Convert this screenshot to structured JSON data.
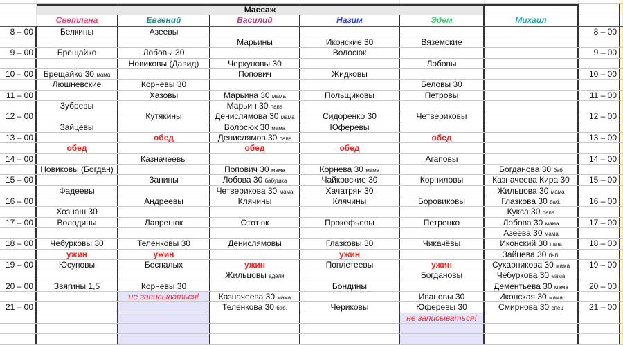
{
  "title": "Массаж",
  "colors": {
    "lunch": "#ff1a1a",
    "closed_fill": "#e3e3fa",
    "master_colors": [
      "#ff4070",
      "#1f8c8c",
      "#b03a7a",
      "#2a3cff",
      "#3dd36a",
      "#2fa5a5"
    ]
  },
  "masters": [
    "Светлана",
    "Евгений",
    "Василий",
    "Назим",
    "Эдем",
    "Михаил"
  ],
  "times": [
    "8 – 00",
    "9 – 00",
    "10 – 00",
    "11 – 00",
    "12 – 00",
    "13 – 00",
    "14 – 00",
    "15 – 00",
    "16 – 00",
    "17 – 00",
    "18 – 00",
    "19 – 00",
    "20 – 00",
    "21 – 00"
  ],
  "rows": [
    [
      [
        "Белкины"
      ],
      [
        "Азеевы"
      ],
      [],
      [],
      [],
      []
    ],
    [
      [],
      [],
      [
        "Марьины"
      ],
      [
        "Иконские 30"
      ],
      [
        "Вяземские"
      ],
      []
    ],
    [
      [
        "Брещайко"
      ],
      [
        "Лобовы 30"
      ],
      [],
      [
        "Волосюк"
      ],
      [],
      []
    ],
    [
      [],
      [
        "Новиковы (Давид)"
      ],
      [
        "Черкуновы 30"
      ],
      [],
      [
        "Лобовы"
      ],
      []
    ],
    [
      [
        "Брещайко 30",
        "мама"
      ],
      [],
      [
        "Попович"
      ],
      [
        "Жидковы"
      ],
      [],
      []
    ],
    [
      [
        "Люшневские"
      ],
      [
        "Корневы 30"
      ],
      [],
      [],
      [
        "Беловы 30"
      ],
      []
    ],
    [
      [],
      [
        "Хазовы"
      ],
      [
        "Марьина 30",
        "мама"
      ],
      [
        "Польщиковы"
      ],
      [
        "Петровы"
      ],
      []
    ],
    [
      [
        "Зубревы"
      ],
      [],
      [
        "Марьин 30",
        "папа"
      ],
      [],
      [],
      []
    ],
    [
      [],
      [
        "Кутякины"
      ],
      [
        "Денислямова 30",
        "мама"
      ],
      [
        "Сидоренко 30"
      ],
      [
        "Четвериковы"
      ],
      []
    ],
    [
      [
        "Зайцевы"
      ],
      [],
      [
        "Волосюк 30",
        "мама"
      ],
      [
        "Юферевы"
      ],
      [],
      []
    ],
    [
      [],
      [
        "обед"
      ],
      [
        "Денислямов 30",
        "папа"
      ],
      [],
      [
        "обед"
      ],
      []
    ],
    [
      [
        "обед"
      ],
      [],
      [
        "обед"
      ],
      [
        "обед"
      ],
      [],
      []
    ],
    [
      [],
      [
        "Казначеевы"
      ],
      [],
      [],
      [
        "Агаповы"
      ],
      []
    ],
    [
      [
        "Новиковы (Богдан)"
      ],
      [],
      [
        "Попович 30",
        "мама"
      ],
      [
        "Корнева 30",
        "мама"
      ],
      [],
      [
        "Богданова 30",
        "баб"
      ]
    ],
    [
      [],
      [
        "Занины"
      ],
      [
        "Лобова 30",
        "бабушка"
      ],
      [
        "Чайковские 30"
      ],
      [
        "Корниловы"
      ],
      [
        "Казначеева Кира 30"
      ]
    ],
    [
      [
        "Фадеевы"
      ],
      [],
      [
        "Четверикова 30",
        "мама"
      ],
      [
        "Хачатрян 30"
      ],
      [],
      [
        "Жильцова 30",
        "мама"
      ]
    ],
    [
      [],
      [
        "Андреевы"
      ],
      [
        "Клячины"
      ],
      [
        "Клячины"
      ],
      [
        "Боровиковы"
      ],
      [
        "Глазкова 30",
        "баб."
      ]
    ],
    [
      [
        "Хознаш 30"
      ],
      [],
      [],
      [],
      [],
      [
        "Кукса 30",
        "папа"
      ]
    ],
    [
      [
        "Володины"
      ],
      [
        "Лавренюк"
      ],
      [
        "Ототюк"
      ],
      [
        "Прокофьевы"
      ],
      [
        "Петренко"
      ],
      [
        "Лобова 30",
        "мама"
      ]
    ],
    [
      [],
      [],
      [],
      [],
      [],
      [
        "Азеева 30",
        "мама"
      ]
    ],
    [
      [
        "Чебурковы 30"
      ],
      [
        "Теленковы 30"
      ],
      [
        "Денислямовы"
      ],
      [
        "Глазковы 30"
      ],
      [
        "Чикачёвы"
      ],
      [
        "Иконский 30",
        "папа"
      ]
    ],
    [
      [
        "ужин"
      ],
      [
        "ужин"
      ],
      [],
      [
        "ужин"
      ],
      [],
      [
        "Зайцева 30",
        "баб."
      ]
    ],
    [
      [
        "Юсуповы"
      ],
      [
        "Беспалых"
      ],
      [
        "ужин"
      ],
      [
        "Поплетеевы"
      ],
      [
        "ужин"
      ],
      [
        "Сухарникова 30",
        "мама"
      ]
    ],
    [
      [],
      [],
      [
        "Жильцовы",
        "адели"
      ],
      [],
      [
        "Богдановы"
      ],
      [
        "Чебуркова 30",
        "мама"
      ]
    ],
    [
      [
        "Звягины 1,5"
      ],
      [
        "Корневы 30"
      ],
      [],
      [
        "Бондины"
      ],
      [],
      [
        "Дементьева 30",
        "мама"
      ]
    ],
    [
      [],
      [
        "не записываться!"
      ],
      [
        "Казначеева 30",
        "мама"
      ],
      [],
      [
        "Ивановы 30"
      ],
      [
        "Иконская 30",
        "мама"
      ]
    ],
    [
      [],
      [],
      [
        "Теленкова 30",
        "баб."
      ],
      [
        "Чериковы"
      ],
      [
        "Юферевы 30"
      ],
      [
        "Смирнова 30",
        "спец"
      ]
    ],
    [
      [],
      [],
      [],
      [],
      [
        "не записываться!"
      ],
      []
    ],
    [
      [],
      [],
      [],
      [],
      [],
      []
    ],
    [
      [],
      [],
      [],
      [],
      [],
      []
    ]
  ],
  "closed_from_row": {
    "1": 25,
    "4": 27
  }
}
